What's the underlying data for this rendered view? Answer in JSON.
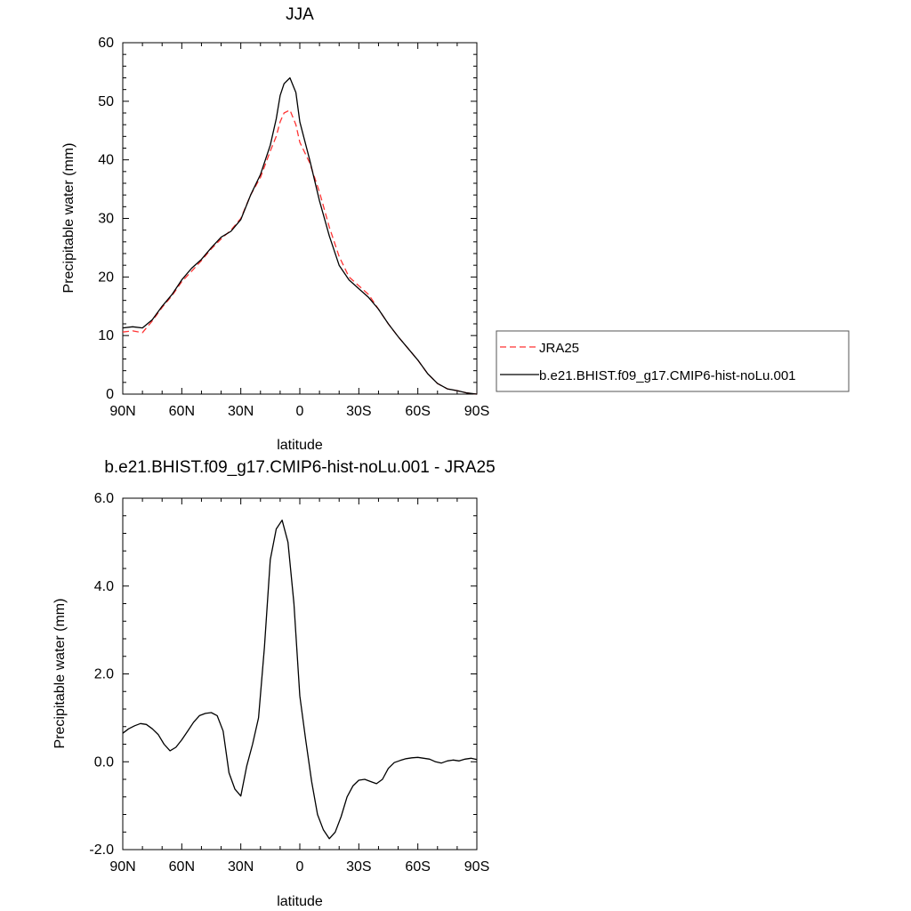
{
  "chart_data": [
    {
      "type": "line",
      "title": "JJA",
      "xlabel": "latitude",
      "ylabel": "Precipitable water (mm)",
      "xlim": [
        90,
        -90
      ],
      "ylim": [
        0,
        60
      ],
      "x_ticks": [
        90,
        60,
        30,
        0,
        -30,
        -60,
        -90
      ],
      "x_tick_labels": [
        "90N",
        "60N",
        "30N",
        "0",
        "30S",
        "60S",
        "90S"
      ],
      "y_ticks": [
        0,
        10,
        20,
        30,
        40,
        50,
        60
      ],
      "y_tick_labels": [
        "0",
        "10",
        "20",
        "30",
        "40",
        "50",
        "60"
      ],
      "grid": false,
      "legend_position": "right",
      "series": [
        {
          "name": "JRA25",
          "color": "#ff3333",
          "dash": "dashed",
          "x": [
            90,
            85,
            80,
            75,
            70,
            65,
            60,
            55,
            50,
            45,
            40,
            35,
            30,
            25,
            20,
            15,
            12,
            10,
            8,
            5,
            2,
            0,
            -5,
            -10,
            -15,
            -20,
            -25,
            -30,
            -35,
            -40,
            -45,
            -50,
            -55,
            -60,
            -65,
            -70,
            -75,
            -80,
            -85,
            -90
          ],
          "y": [
            10.6,
            10.8,
            10.5,
            12.5,
            14.8,
            16.8,
            19.2,
            21.0,
            22.8,
            24.8,
            26.5,
            28.0,
            30.0,
            34.0,
            37.0,
            41.5,
            44.0,
            46.5,
            48.0,
            48.5,
            46.0,
            43.0,
            39.5,
            34.5,
            28.5,
            23.5,
            20.0,
            18.5,
            17.0,
            14.5,
            12.0,
            9.8,
            7.8,
            5.8,
            3.5,
            1.8,
            0.9,
            0.6,
            0.2,
            0.0
          ]
        },
        {
          "name": "b.e21.BHIST.f09_g17.CMIP6-hist-noLu.001",
          "color": "#000000",
          "dash": "solid",
          "x": [
            90,
            85,
            80,
            75,
            70,
            65,
            60,
            55,
            50,
            45,
            40,
            35,
            30,
            25,
            20,
            15,
            12,
            10,
            8,
            5,
            2,
            0,
            -5,
            -10,
            -15,
            -20,
            -25,
            -30,
            -35,
            -40,
            -45,
            -50,
            -55,
            -60,
            -65,
            -70,
            -75,
            -80,
            -85,
            -90
          ],
          "y": [
            11.3,
            11.5,
            11.3,
            12.7,
            15.0,
            17.0,
            19.5,
            21.5,
            23.0,
            25.0,
            26.8,
            27.8,
            29.8,
            34.0,
            37.5,
            42.5,
            47.0,
            51.0,
            53.0,
            54.0,
            51.5,
            46.5,
            40.0,
            33.0,
            27.0,
            22.0,
            19.5,
            18.0,
            16.5,
            14.5,
            12.0,
            9.8,
            7.8,
            5.8,
            3.5,
            1.8,
            0.9,
            0.6,
            0.2,
            0.0
          ]
        }
      ]
    },
    {
      "type": "line",
      "title": "b.e21.BHIST.f09_g17.CMIP6-hist-noLu.001 - JRA25",
      "xlabel": "latitude",
      "ylabel": "Precipitable water (mm)",
      "xlim": [
        90,
        -90
      ],
      "ylim": [
        -2,
        6
      ],
      "x_ticks": [
        90,
        60,
        30,
        0,
        -30,
        -60,
        -90
      ],
      "x_tick_labels": [
        "90N",
        "60N",
        "30N",
        "0",
        "30S",
        "60S",
        "90S"
      ],
      "y_ticks": [
        -2,
        0,
        2,
        4,
        6
      ],
      "y_tick_labels": [
        "-2.0",
        "0.0",
        "2.0",
        "4.0",
        "6.0"
      ],
      "grid": false,
      "series": [
        {
          "color": "#000000",
          "dash": "solid",
          "x": [
            90,
            87,
            84,
            81,
            78,
            75,
            72,
            69,
            66,
            63,
            60,
            57,
            54,
            51,
            48,
            45,
            42,
            39,
            36,
            33,
            30,
            27,
            24,
            21,
            18,
            15,
            12,
            9,
            6,
            3,
            0,
            -3,
            -6,
            -9,
            -12,
            -15,
            -18,
            -21,
            -24,
            -27,
            -30,
            -33,
            -36,
            -39,
            -42,
            -45,
            -48,
            -51,
            -54,
            -57,
            -60,
            -63,
            -66,
            -69,
            -72,
            -75,
            -78,
            -81,
            -84,
            -87,
            -90
          ],
          "y": [
            0.65,
            0.75,
            0.82,
            0.87,
            0.85,
            0.75,
            0.62,
            0.4,
            0.25,
            0.33,
            0.5,
            0.7,
            0.9,
            1.05,
            1.1,
            1.12,
            1.05,
            0.7,
            -0.25,
            -0.62,
            -0.78,
            -0.1,
            0.4,
            1.0,
            2.6,
            4.6,
            5.3,
            5.5,
            5.0,
            3.6,
            1.5,
            0.5,
            -0.45,
            -1.2,
            -1.55,
            -1.75,
            -1.6,
            -1.25,
            -0.8,
            -0.55,
            -0.42,
            -0.4,
            -0.45,
            -0.5,
            -0.4,
            -0.15,
            -0.02,
            0.03,
            0.07,
            0.09,
            0.1,
            0.08,
            0.06,
            0.0,
            -0.03,
            0.02,
            0.04,
            0.02,
            0.06,
            0.08,
            0.05
          ]
        }
      ]
    }
  ]
}
